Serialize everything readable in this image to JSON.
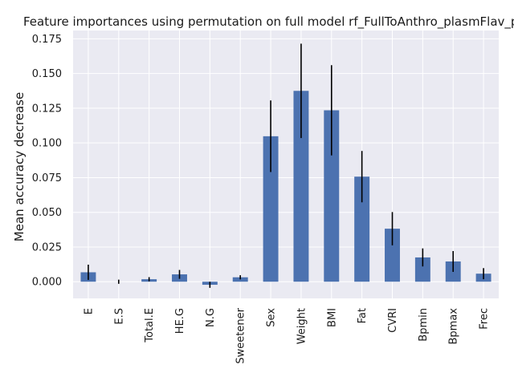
{
  "chart_data": {
    "type": "bar",
    "title": "Feature importances using permutation on full model rf_FullToAnthro_plasmFlav_p",
    "xlabel": "",
    "ylabel": "Mean accuracy decrease",
    "ylim": [
      -0.012,
      0.181
    ],
    "yticks": [
      0.0,
      0.025,
      0.05,
      0.075,
      0.1,
      0.125,
      0.15,
      0.175
    ],
    "ytick_labels": [
      "0.000",
      "0.025",
      "0.050",
      "0.075",
      "0.100",
      "0.125",
      "0.150",
      "0.175"
    ],
    "categories": [
      "E",
      "E.S",
      "Total.E",
      "HE.G",
      "N.G",
      "Sweetener",
      "Sex",
      "Weight",
      "BMI",
      "Fat",
      "CVRI",
      "Bpmin",
      "Bpmax",
      "Frec"
    ],
    "values": [
      0.0068,
      0.0,
      0.0018,
      0.0053,
      -0.0022,
      0.0032,
      0.1048,
      0.1375,
      0.1235,
      0.0757,
      0.0382,
      0.0175,
      0.0146,
      0.0058
    ],
    "errors": [
      0.0055,
      0.0015,
      0.0015,
      0.0032,
      0.0022,
      0.0015,
      0.0258,
      0.034,
      0.0325,
      0.0185,
      0.012,
      0.0065,
      0.0075,
      0.004
    ],
    "grid": true,
    "bar_color": "#4c72b0",
    "background_color": "#eaeaf2",
    "error_color": "#000000"
  }
}
